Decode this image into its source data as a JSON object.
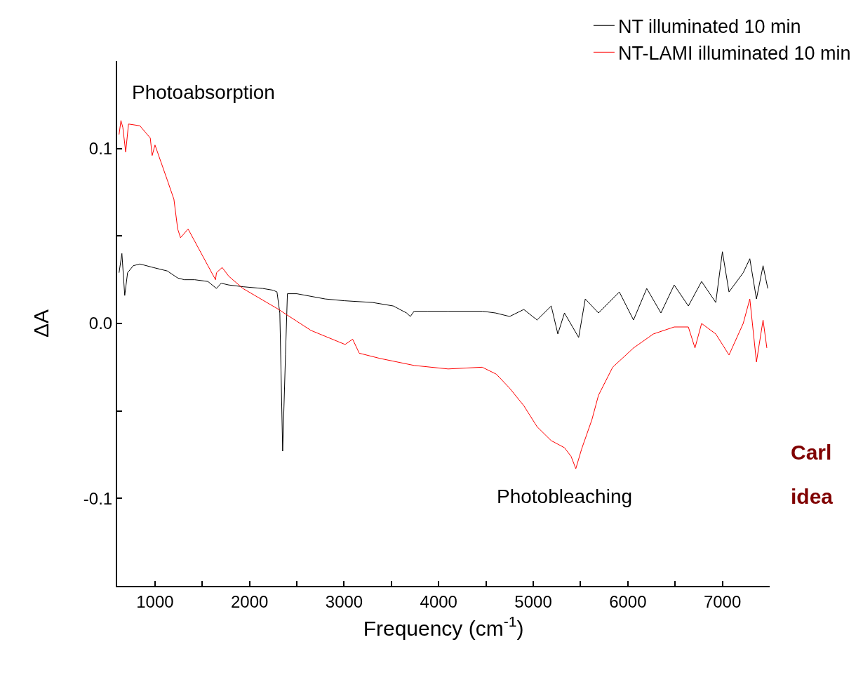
{
  "chart_data": {
    "type": "line",
    "xlabel": "Frequency (cm$^{-1}$)",
    "ylabel": "ΔA",
    "xlim": [
      600,
      7500
    ],
    "ylim": [
      -0.15,
      0.15
    ],
    "xticks": [
      1000,
      {
        "value": 1500,
        "label": null
      },
      2000,
      {
        "value": 2500,
        "label": null
      },
      3000,
      {
        "value": 3500,
        "label": null
      },
      4000,
      {
        "value": 4500,
        "label": null
      },
      5000,
      {
        "value": 5500,
        "label": null
      },
      6000,
      {
        "value": 6500,
        "label": null
      },
      7000
    ],
    "yticks": [
      {
        "value": -0.15,
        "label": null
      },
      {
        "value": -0.1,
        "label": "-0.1"
      },
      {
        "value": -0.05,
        "label": null
      },
      {
        "value": 0,
        "label": "0.0"
      },
      {
        "value": 0.05,
        "label": null
      },
      0.1
    ],
    "legend": "top right",
    "line_style": "solid",
    "marker": "none",
    "annotations": [
      "Photoabsorption",
      "Photobleaching",
      "Carl",
      "idea"
    ],
    "series": [
      {
        "name": "NT illuminated 10 min",
        "color": "#000000",
        "x": [
          620,
          650,
          680,
          710,
          770,
          840,
          980,
          1130,
          1240,
          1310,
          1420,
          1560,
          1650,
          1700,
          1780,
          1930,
          2140,
          2250,
          2290,
          2320,
          2350,
          2380,
          2400,
          2500,
          2800,
          3000,
          3300,
          3520,
          3660,
          3700,
          3740,
          3880,
          4100,
          4460,
          4600,
          4750,
          4900,
          5040,
          5190,
          5260,
          5330,
          5480,
          5550,
          5690,
          5910,
          6060,
          6200,
          6350,
          6490,
          6640,
          6780,
          6930,
          7000,
          7070,
          7220,
          7290,
          7360,
          7430,
          7480
        ],
        "values": [
          0.029,
          0.04,
          0.016,
          0.029,
          0.033,
          0.034,
          0.032,
          0.03,
          0.026,
          0.025,
          0.025,
          0.024,
          0.02,
          0.023,
          0.022,
          0.021,
          0.02,
          0.019,
          0.018,
          0.006,
          -0.073,
          -0.018,
          0.017,
          0.017,
          0.014,
          0.013,
          0.012,
          0.01,
          0.006,
          0.004,
          0.007,
          0.007,
          0.007,
          0.007,
          0.006,
          0.004,
          0.008,
          0.002,
          0.01,
          -0.006,
          0.006,
          -0.008,
          0.014,
          0.006,
          0.018,
          0.002,
          0.02,
          0.006,
          0.022,
          0.01,
          0.024,
          0.012,
          0.041,
          0.018,
          0.029,
          0.037,
          0.014,
          0.033,
          0.02
        ]
      },
      {
        "name": "NT-LAMI illuminated 10 min",
        "color": "#ff0000",
        "x": [
          620,
          640,
          660,
          690,
          720,
          840,
          950,
          970,
          1000,
          1130,
          1200,
          1240,
          1270,
          1350,
          1420,
          1460,
          1560,
          1640,
          1650,
          1710,
          1780,
          1930,
          2290,
          2650,
          3010,
          3090,
          3160,
          3380,
          3740,
          4100,
          4460,
          4610,
          4750,
          4900,
          5040,
          5190,
          5330,
          5400,
          5450,
          5510,
          5620,
          5690,
          5840,
          6060,
          6270,
          6490,
          6640,
          6710,
          6780,
          6930,
          7070,
          7220,
          7290,
          7360,
          7430,
          7470
        ],
        "values": [
          0.108,
          0.116,
          0.112,
          0.098,
          0.114,
          0.113,
          0.106,
          0.096,
          0.102,
          0.082,
          0.071,
          0.054,
          0.049,
          0.054,
          0.047,
          0.043,
          0.033,
          0.025,
          0.029,
          0.032,
          0.027,
          0.02,
          0.0086,
          -0.004,
          -0.012,
          -0.009,
          -0.017,
          -0.02,
          -0.024,
          -0.026,
          -0.025,
          -0.029,
          -0.037,
          -0.047,
          -0.059,
          -0.067,
          -0.071,
          -0.076,
          -0.083,
          -0.072,
          -0.055,
          -0.041,
          -0.025,
          -0.014,
          -0.006,
          -0.002,
          -0.002,
          -0.014,
          0.0,
          -0.006,
          -0.018,
          0.0,
          0.014,
          -0.022,
          0.002,
          -0.014
        ]
      }
    ]
  }
}
